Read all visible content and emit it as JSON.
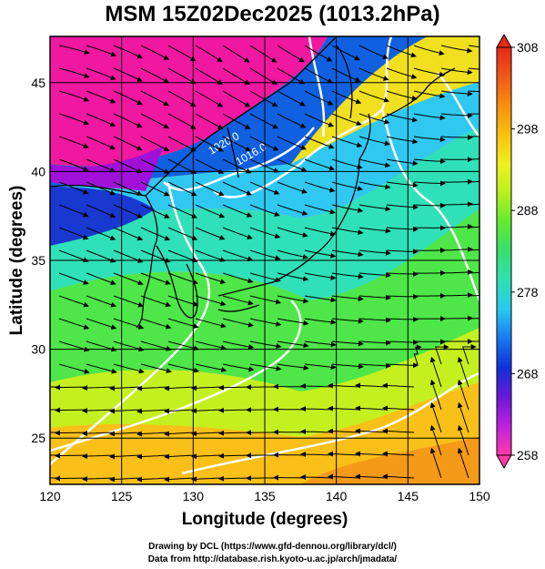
{
  "title": "MSM 15Z02Dec2025 (1013.2hPa)",
  "xaxis": {
    "label": "Longitude (degrees)",
    "ticks": [
      120,
      125,
      130,
      135,
      140,
      145,
      150
    ],
    "range": [
      120,
      150
    ]
  },
  "yaxis": {
    "label": "Latitude  (degrees)",
    "ticks": [
      25,
      30,
      35,
      40,
      45
    ],
    "range": [
      22.4,
      47.6
    ]
  },
  "colorbar": {
    "ticks": [
      258,
      268,
      278,
      288,
      298,
      308
    ],
    "range": [
      258,
      308
    ],
    "colors": [
      "#ff3aa8",
      "#c020e0",
      "#6a18d8",
      "#1030d8",
      "#1878f0",
      "#28c8f0",
      "#30e0b0",
      "#38e070",
      "#60ea30",
      "#b8f020",
      "#f0f020",
      "#f8c010",
      "#f89010",
      "#f05818",
      "#e82818"
    ]
  },
  "contour_labels": [
    "1020.0",
    "1016.0"
  ],
  "credits": [
    "Drawing by DCL (https://www.gfd-dennou.org/library/dcl/)",
    "Data from http://database.rish.kyoto-u.ac.jp/arch/jmadata/"
  ],
  "colors": {
    "land_outline": "#000000",
    "contour": "#ffffff",
    "streamline": "#000000"
  }
}
